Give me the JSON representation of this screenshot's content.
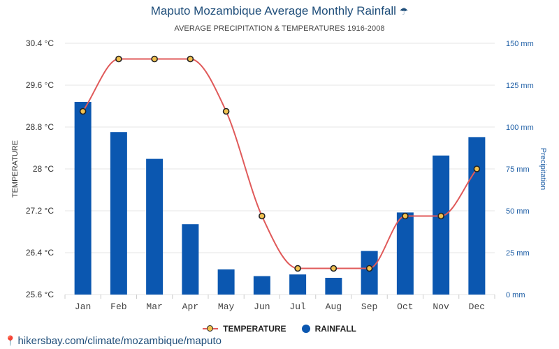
{
  "header": {
    "title": "Maputo Mozambique Average Monthly Rainfall",
    "title_icon": "umbrella-icon",
    "subtitle": "AVERAGE PRECIPITATION & TEMPERATURES 1916-2008"
  },
  "footer": {
    "icon": "location-pin-icon",
    "url": "hikersbay.com/climate/mozambique/maputo"
  },
  "legend": {
    "temperature": "TEMPERATURE",
    "rainfall": "RAINFALL"
  },
  "colors": {
    "bar": "#0b57b0",
    "line": "#e05a5a",
    "marker_fill": "#f2c14e",
    "marker_stroke": "#222222",
    "grid": "#e6e6e6",
    "right_axis": "#1f5fa6"
  },
  "chart_data": {
    "type": "bar",
    "title": "Maputo Mozambique Average Monthly Rainfall",
    "subtitle": "AVERAGE PRECIPITATION & TEMPERATURES 1916-2008",
    "categories": [
      "Jan",
      "Feb",
      "Mar",
      "Apr",
      "May",
      "Jun",
      "Jul",
      "Aug",
      "Sep",
      "Oct",
      "Nov",
      "Dec"
    ],
    "series": [
      {
        "name": "RAINFALL",
        "type": "bar",
        "axis": "right",
        "unit": "mm",
        "values": [
          115,
          97,
          81,
          42,
          15,
          11,
          12,
          10,
          26,
          49,
          83,
          94
        ]
      },
      {
        "name": "TEMPERATURE",
        "type": "line",
        "axis": "left",
        "unit": "°C",
        "values": [
          29.1,
          30.1,
          30.1,
          30.1,
          29.1,
          27.1,
          26.1,
          26.1,
          26.1,
          27.1,
          27.1,
          28.0
        ]
      }
    ],
    "left_axis": {
      "label": "TEMPERATURE",
      "ylim": [
        25.6,
        30.4
      ],
      "ticks": [
        "30.4 °C",
        "29.6 °C",
        "28.8 °C",
        "28 °C",
        "27.2 °C",
        "26.4 °C",
        "25.6 °C"
      ]
    },
    "right_axis": {
      "label": "Precipitation",
      "ylim": [
        0,
        150
      ],
      "ticks": [
        "150 mm",
        "125 mm",
        "100 mm",
        "75 mm",
        "50 mm",
        "25 mm",
        "0 mm"
      ]
    },
    "grid": true,
    "legend_position": "bottom"
  }
}
